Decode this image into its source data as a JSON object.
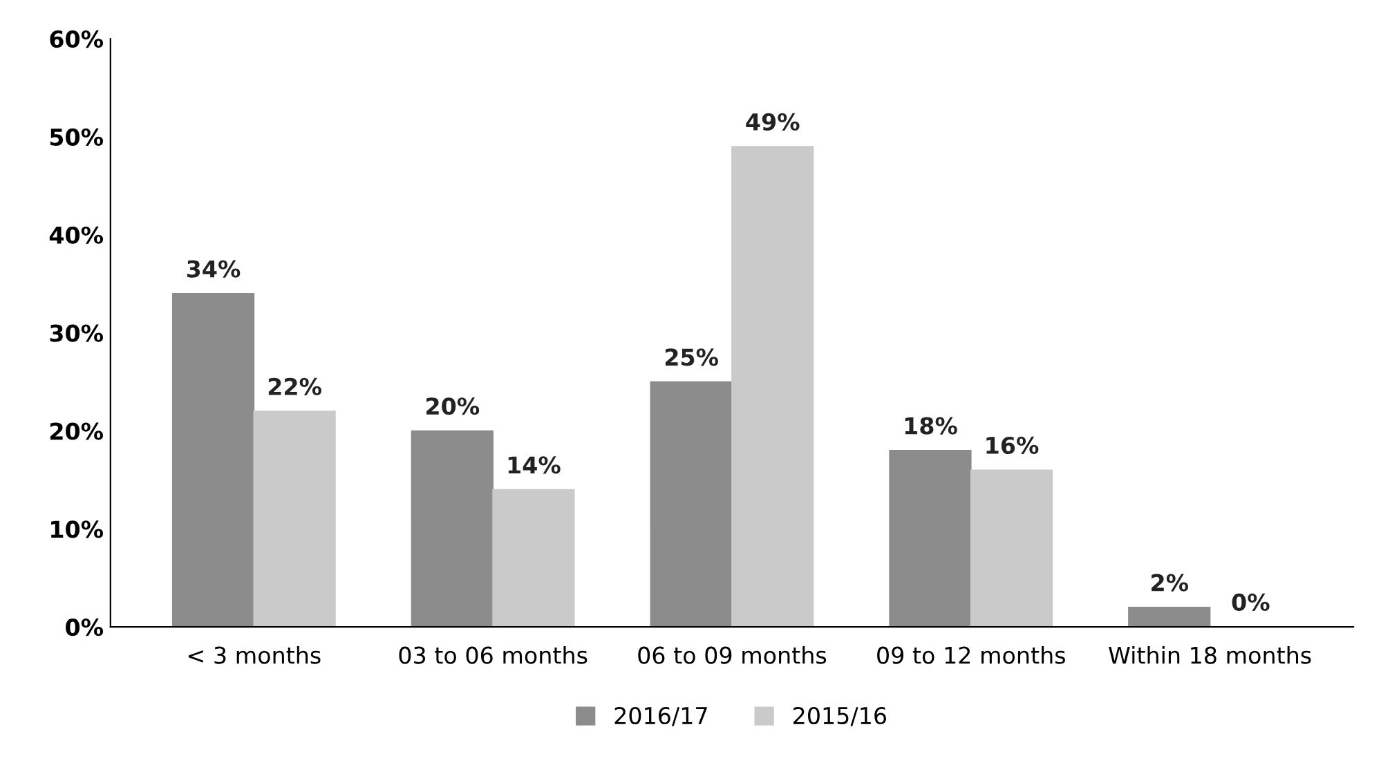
{
  "chart_data": {
    "type": "bar",
    "categories": [
      "< 3 months",
      "03 to 06 months",
      "06 to 09 months",
      "09 to 12 months",
      "Within 18 months"
    ],
    "series": [
      {
        "name": "2016/17",
        "color": "#8c8c8c",
        "values": [
          34,
          20,
          25,
          18,
          2
        ],
        "value_labels": [
          "34%",
          "20%",
          "25%",
          "18%",
          "2%"
        ]
      },
      {
        "name": "2015/16",
        "color": "#cacaca",
        "values": [
          22,
          14,
          49,
          16,
          0
        ],
        "value_labels": [
          "22%",
          "14%",
          "49%",
          "16%",
          "0%"
        ]
      }
    ],
    "ylim": [
      0,
      60
    ],
    "yticks": [
      {
        "value": 0,
        "label": "0%"
      },
      {
        "value": 10,
        "label": "10%"
      },
      {
        "value": 20,
        "label": "20%"
      },
      {
        "value": 30,
        "label": "30%"
      },
      {
        "value": 40,
        "label": "40%"
      },
      {
        "value": 50,
        "label": "50%"
      },
      {
        "value": 60,
        "label": "60%"
      }
    ],
    "grid": false,
    "legend": "bottom"
  }
}
